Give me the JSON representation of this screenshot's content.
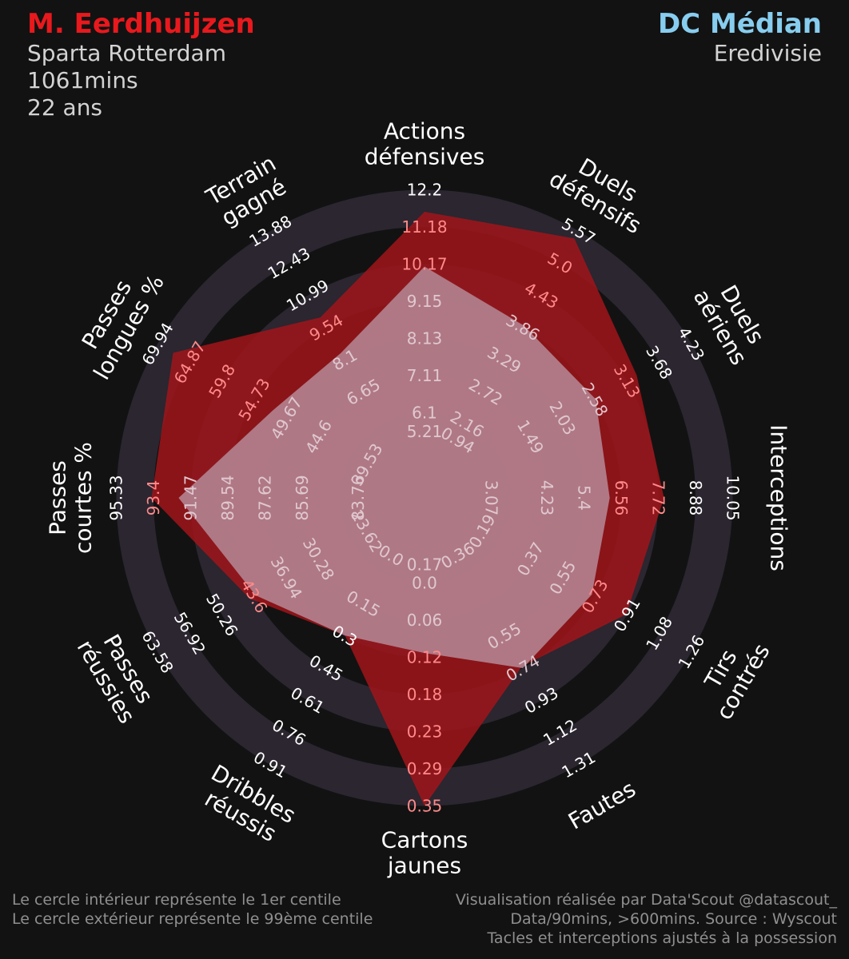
{
  "header": {
    "player_name": "M. Eerdhuijzen",
    "team": "Sparta Rotterdam",
    "minutes": "1061mins",
    "age": "22 ans",
    "position": "DC Médian",
    "league": "Eredivisie"
  },
  "footer": {
    "left_line1": "Le cercle intérieur représente le 1er centile",
    "left_line2": "Le cercle extérieur représente le 99ème centile",
    "right_line1": "Visualisation réalisée par Data'Scout @datascout_",
    "right_line2": "Data/90mins, >600mins. Source : Wyscout",
    "right_line3": "Tacles et interceptions ajustés à la possession"
  },
  "colors": {
    "background": "#121212",
    "ring": "#2b2630",
    "player_fill": "#a0151a",
    "player_label": "#ff8a8a",
    "average_fill": "#b58a98",
    "average_label": "#e0c8d0",
    "text": "#ffffff",
    "player_name": "#e8191d",
    "position_name": "#87cdef"
  },
  "chart_data": {
    "type": "radar",
    "rings": 7,
    "categories": [
      {
        "label": [
          "Actions",
          "défensives"
        ],
        "ticks": [
          "6.1",
          "7.11",
          "8.13",
          "9.15",
          "10.17",
          "11.18",
          "12.2"
        ]
      },
      {
        "label": [
          "Duels",
          "défensifs"
        ],
        "ticks": [
          "2.16",
          "2.72",
          "3.29",
          "3.86",
          "4.43",
          "5.0",
          "5.57"
        ]
      },
      {
        "label": [
          "Duels",
          "aériens"
        ],
        "ticks": [
          "1.49",
          "2.03",
          "2.58",
          "3.13",
          "3.68",
          "4.23"
        ]
      },
      {
        "label": [
          "Interceptions"
        ],
        "ticks": [
          "4.23",
          "5.4",
          "6.56",
          "7.72",
          "8.88",
          "10.05"
        ]
      },
      {
        "label": [
          "Tirs",
          "contrés"
        ],
        "ticks": [
          "0.37",
          "0.55",
          "0.73",
          "0.91",
          "1.08",
          "1.26"
        ]
      },
      {
        "label": [
          "Fautes"
        ],
        "ticks": [
          "0.55",
          "0.74",
          "0.93",
          "1.12",
          "1.31"
        ]
      },
      {
        "label": [
          "Cartons",
          "jaunes"
        ],
        "ticks": [
          "0.0",
          "0.06",
          "0.12",
          "0.18",
          "0.23",
          "0.29",
          "0.35"
        ]
      },
      {
        "label": [
          "Dribbles",
          "réussis"
        ],
        "ticks": [
          "0.15",
          "0.3",
          "0.45",
          "0.61",
          "0.76",
          "0.91"
        ]
      },
      {
        "label": [
          "Passes",
          "réussies"
        ],
        "ticks": [
          "30.28",
          "36.94",
          "43.6",
          "50.26",
          "56.92",
          "63.58"
        ]
      },
      {
        "label": [
          "Passes",
          "courtes %"
        ],
        "ticks": [
          "85.69",
          "87.62",
          "89.54",
          "91.47",
          "93.4",
          "95.33"
        ]
      },
      {
        "label": [
          "Passes",
          "longues %"
        ],
        "ticks": [
          "44.6",
          "49.67",
          "54.73",
          "59.8",
          "64.87",
          "69.94"
        ]
      },
      {
        "label": [
          "Terrain",
          "gagné"
        ],
        "ticks": [
          "6.65",
          "8.1",
          "9.54",
          "10.99",
          "12.43",
          "13.88"
        ]
      }
    ],
    "inner_ticks": [
      {
        "angle": -90,
        "text": "5.21"
      },
      {
        "angle": 0,
        "text": "3.07"
      },
      {
        "angle": 30,
        "text": "0.19"
      },
      {
        "angle": 60,
        "text": "0.36"
      },
      {
        "angle": 120,
        "text": "0.0"
      },
      {
        "angle": 150,
        "text": "23.62"
      },
      {
        "angle": 180,
        "text": "83.76"
      },
      {
        "angle": 210,
        "text": "39.53"
      },
      {
        "angle": -60,
        "text": "0.94"
      },
      {
        "angle": 90,
        "text": "0.17"
      }
    ],
    "series": [
      {
        "name": "M. Eerdhuijzen",
        "values": [
          11.6,
          5.44,
          3.3,
          7.9,
          0.9,
          0.73,
          0.35,
          0.3,
          44.5,
          93.5,
          67.5,
          10.0
        ]
      },
      {
        "name": "DC Médian",
        "values": [
          10.1,
          3.9,
          2.6,
          6.2,
          0.71,
          0.74,
          0.11,
          0.3,
          43.3,
          92.1,
          51.8,
          8.4
        ]
      }
    ]
  }
}
